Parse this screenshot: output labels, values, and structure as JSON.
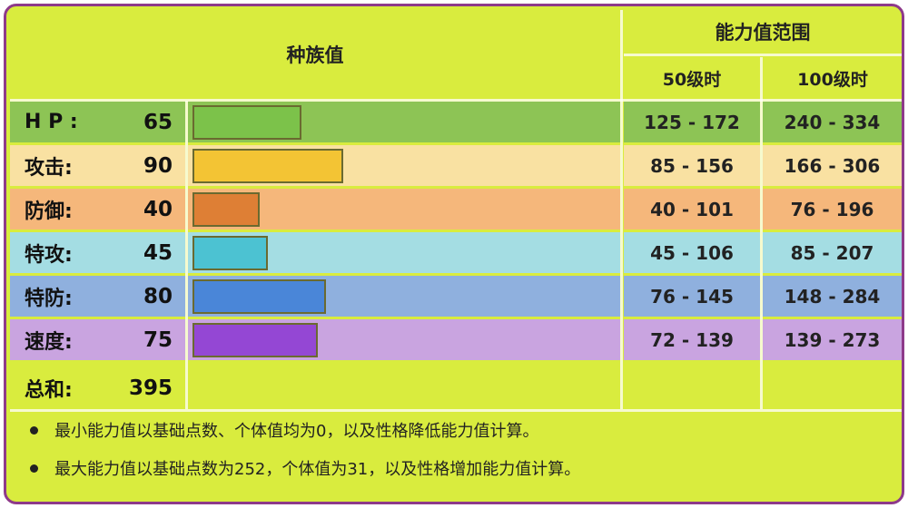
{
  "header": {
    "species": "种族值",
    "range": "能力值范围",
    "lv50": "50级时",
    "lv100": "100级时"
  },
  "stats": [
    {
      "label": "H P :",
      "value": 65,
      "lv50": "125 - 172",
      "lv100": "240 - 334",
      "row_color": "#8dc455",
      "bar_color": "#7cc24a"
    },
    {
      "label": "攻击:",
      "value": 90,
      "lv50": "85 - 156",
      "lv100": "166 - 306",
      "row_color": "#f9e1a2",
      "bar_color": "#f3c434"
    },
    {
      "label": "防御:",
      "value": 40,
      "lv50": "40 - 101",
      "lv100": "76 - 196",
      "row_color": "#f5b77b",
      "bar_color": "#de7f35"
    },
    {
      "label": "特攻:",
      "value": 45,
      "lv50": "45 - 106",
      "lv100": "85 - 207",
      "row_color": "#a4dde3",
      "bar_color": "#4cc2d2"
    },
    {
      "label": "特防:",
      "value": 80,
      "lv50": "76 - 145",
      "lv100": "148 - 284",
      "row_color": "#8fb0de",
      "bar_color": "#4a86d8"
    },
    {
      "label": "速度:",
      "value": 75,
      "lv50": "72 - 139",
      "lv100": "139 - 273",
      "row_color": "#c9a4e0",
      "bar_color": "#9447d4"
    }
  ],
  "total": {
    "label": "总和:",
    "value": 395
  },
  "notes": [
    "最小能力值以基础点数、个体值均为0，以及性格降低能力值计算。",
    "最大能力值以基础点数为252，个体值为31，以及性格增加能力值计算。"
  ],
  "bar_scale_max": 255
}
